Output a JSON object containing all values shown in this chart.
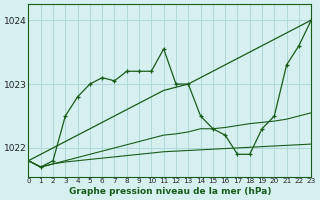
{
  "title": "Graphe pression niveau de la mer (hPa)",
  "bg_color": "#d6f0f0",
  "grid_color": "#b0d8d8",
  "line_color": "#1a5c1a",
  "xlim": [
    0,
    23
  ],
  "ylim": [
    1021.55,
    1024.25
  ],
  "yticks": [
    1022,
    1023,
    1024
  ],
  "xticks": [
    0,
    1,
    2,
    3,
    4,
    5,
    6,
    7,
    8,
    9,
    10,
    11,
    12,
    13,
    14,
    15,
    16,
    17,
    18,
    19,
    20,
    21,
    22,
    23
  ],
  "series": {
    "wiggly1": [
      1021.8,
      1021.7,
      1021.8,
      1022.5,
      1022.8,
      1023.0,
      1023.1,
      1023.05,
      1023.2,
      1023.2,
      1023.2,
      1023.55,
      1023.0,
      1023.0,
      1022.5,
      1022.3,
      1022.2,
      1021.9,
      1021.9,
      1022.3,
      1022.5,
      1023.3,
      1023.6,
      1024.0
    ],
    "diagonal": [
      1021.8,
      1021.9,
      1022.0,
      1022.1,
      1022.2,
      1022.3,
      1022.4,
      1022.5,
      1022.6,
      1022.7,
      1022.8,
      1022.9,
      1022.95,
      1023.0,
      1023.1,
      1023.2,
      1023.3,
      1023.4,
      1023.5,
      1023.6,
      1023.7,
      1023.8,
      1023.9,
      1024.0
    ],
    "flat1": [
      1021.8,
      1021.7,
      1021.75,
      1021.8,
      1021.85,
      1021.9,
      1021.95,
      1022.0,
      1022.05,
      1022.1,
      1022.15,
      1022.2,
      1022.22,
      1022.25,
      1022.3,
      1022.3,
      1022.32,
      1022.35,
      1022.38,
      1022.4,
      1022.42,
      1022.45,
      1022.5,
      1022.55
    ],
    "flat2": [
      1021.8,
      1021.7,
      1021.75,
      1021.78,
      1021.8,
      1021.82,
      1021.84,
      1021.86,
      1021.88,
      1021.9,
      1021.92,
      1021.94,
      1021.95,
      1021.96,
      1021.97,
      1021.98,
      1021.99,
      1022.0,
      1022.01,
      1022.02,
      1022.03,
      1022.04,
      1022.05,
      1022.06
    ]
  }
}
